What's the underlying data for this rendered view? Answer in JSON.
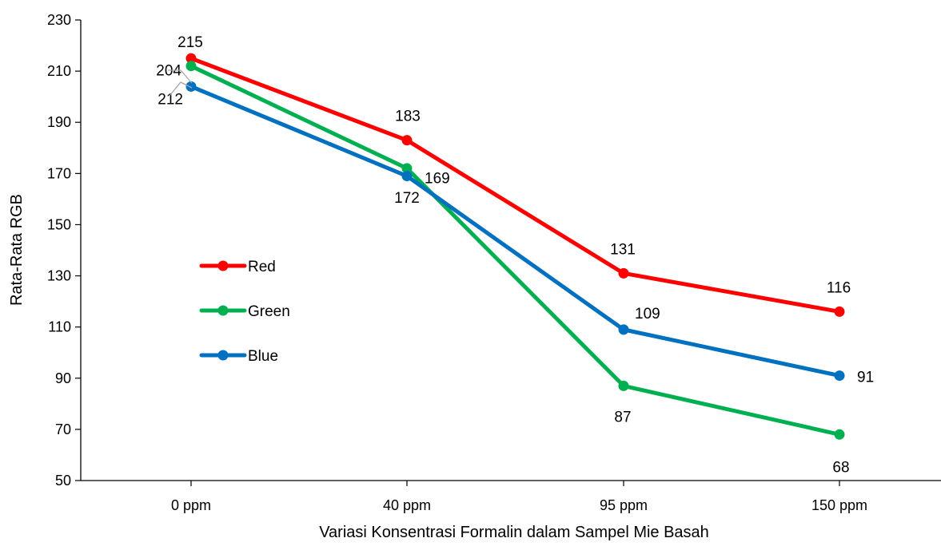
{
  "chart_data": {
    "type": "line",
    "title": "",
    "xlabel": "Variasi Konsentrasi Formalin dalam Sampel Mie Basah",
    "ylabel": "Rata-Rata RGB",
    "categories": [
      "0 ppm",
      "40 ppm",
      "95 ppm",
      "150 ppm"
    ],
    "ylim": [
      50,
      230
    ],
    "yticks": [
      50,
      70,
      90,
      110,
      130,
      150,
      170,
      190,
      210,
      230
    ],
    "grid": false,
    "legend_position": "left",
    "series": [
      {
        "name": "Red",
        "color": "#FF0000",
        "values": [
          215,
          183,
          131,
          116
        ]
      },
      {
        "name": "Green",
        "color": "#00B050",
        "values": [
          212,
          172,
          87,
          68
        ]
      },
      {
        "name": "Blue",
        "color": "#0070C0",
        "values": [
          204,
          169,
          109,
          91
        ]
      }
    ]
  }
}
